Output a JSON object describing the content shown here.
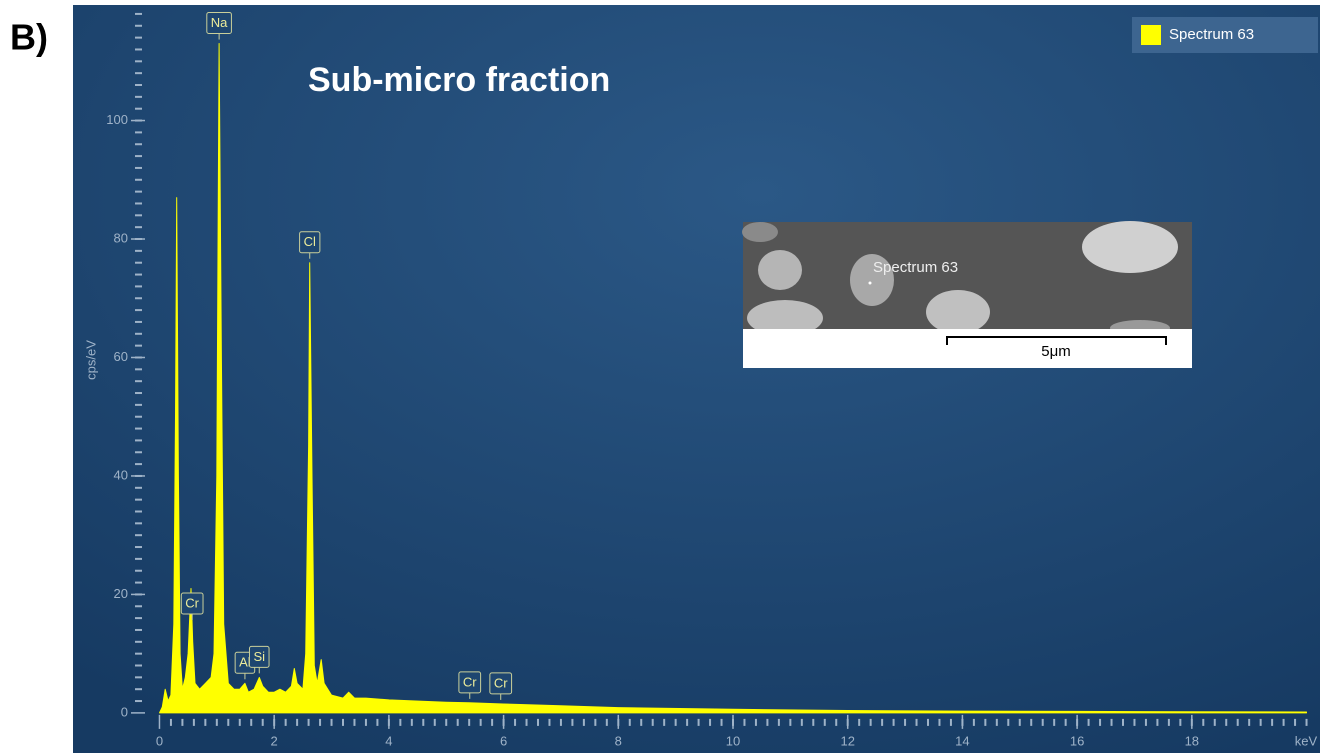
{
  "chart_data": {
    "type": "area",
    "panel_label": "B)",
    "title": "Sub-micro fraction",
    "x_label": "keV",
    "y_label": "cps/eV",
    "xlim": [
      -0.2,
      20.2
    ],
    "ylim": [
      -1.2,
      119
    ],
    "xticks": [
      0,
      2,
      4,
      6,
      8,
      10,
      12,
      14,
      16,
      18
    ],
    "yticks": [
      0,
      20,
      40,
      60,
      80,
      100
    ],
    "x": [
      0,
      0.05,
      0.1,
      0.15,
      0.2,
      0.25,
      0.28,
      0.3,
      0.33,
      0.36,
      0.4,
      0.45,
      0.5,
      0.55,
      0.58,
      0.62,
      0.7,
      0.8,
      0.9,
      0.95,
      1.0,
      1.04,
      1.08,
      1.12,
      1.2,
      1.3,
      1.4,
      1.49,
      1.55,
      1.65,
      1.74,
      1.8,
      1.9,
      2.0,
      2.1,
      2.2,
      2.3,
      2.35,
      2.4,
      2.5,
      2.55,
      2.6,
      2.62,
      2.66,
      2.7,
      2.75,
      2.82,
      2.87,
      3.0,
      3.2,
      3.3,
      3.4,
      3.6,
      4,
      5,
      5.4,
      6,
      7,
      8,
      10,
      12,
      14,
      16,
      18,
      20
    ],
    "series": [
      {
        "name": "Spectrum 63",
        "color": "#ffff00",
        "values": [
          0,
          1,
          4,
          2,
          3,
          15,
          50,
          87,
          40,
          10,
          4,
          6,
          10,
          21,
          12,
          5,
          4,
          5,
          6,
          10,
          40,
          113,
          60,
          15,
          5,
          4,
          4,
          5,
          3.5,
          4,
          6,
          4.5,
          3.5,
          3.5,
          4,
          3.5,
          4.5,
          7.5,
          5,
          4,
          10,
          45,
          76,
          40,
          8,
          5,
          9,
          5,
          3,
          2.5,
          3.5,
          2.5,
          2.5,
          2.2,
          1.8,
          1.7,
          1.5,
          1.2,
          0.9,
          0.6,
          0.4,
          0.3,
          0.25,
          0.2,
          0.15
        ]
      }
    ],
    "peaks": [
      {
        "label": "Cr",
        "x": 0.57
      },
      {
        "label": "Na",
        "x": 1.04
      },
      {
        "label": "Al",
        "x": 1.49
      },
      {
        "label": "Si",
        "x": 1.74
      },
      {
        "label": "Cl",
        "x": 2.62
      },
      {
        "label": "Cr",
        "x": 5.41
      },
      {
        "label": "Cr",
        "x": 5.95
      }
    ],
    "inset": {
      "point_label": "Spectrum 63",
      "scale_label": "5μm"
    }
  }
}
